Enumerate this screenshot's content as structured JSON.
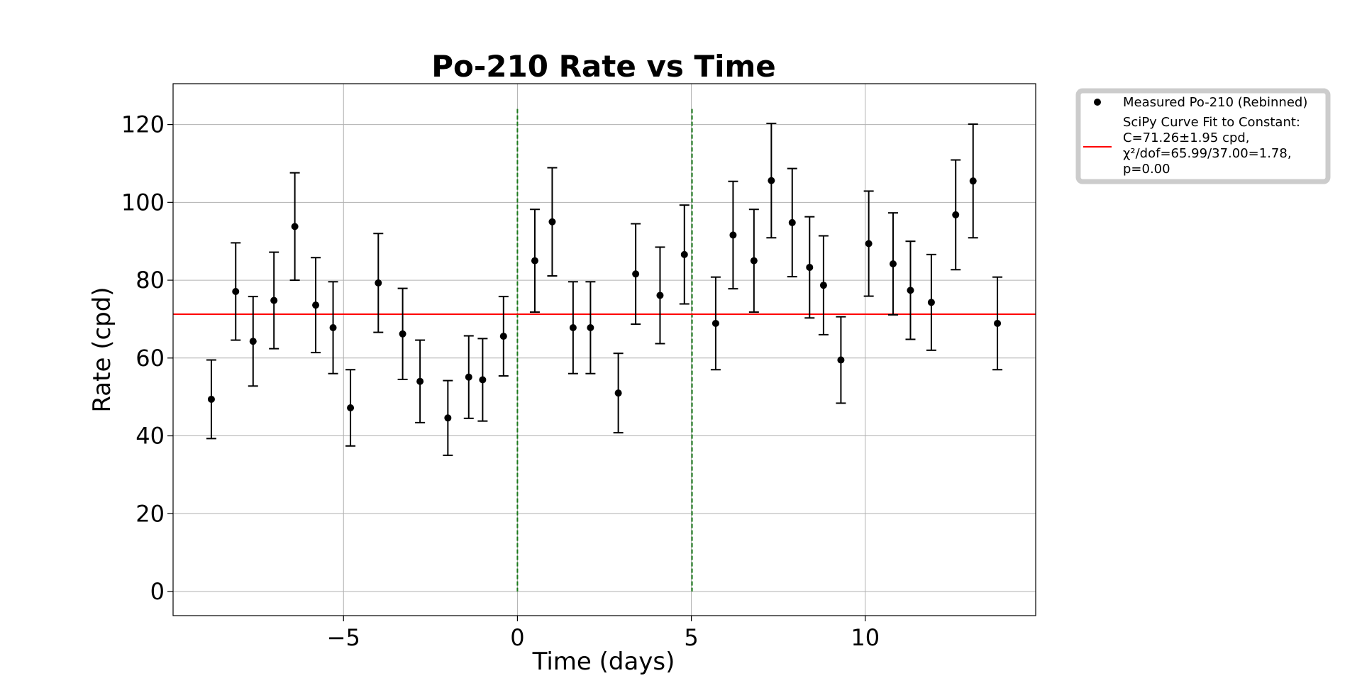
{
  "chart_data": {
    "type": "scatter",
    "title": "Po-210 Rate vs Time",
    "xlabel": "Time (days)",
    "ylabel": "Rate (cpd)",
    "xlim": [
      -9.9,
      14.9
    ],
    "ylim": [
      -6.2,
      130.5
    ],
    "xticks": [
      -5,
      0,
      5,
      10
    ],
    "xtick_labels": [
      "−5",
      "0",
      "5",
      "10"
    ],
    "yticks": [
      0,
      20,
      40,
      60,
      80,
      100,
      120
    ],
    "ytick_labels": [
      "0",
      "20",
      "40",
      "60",
      "80",
      "100",
      "120"
    ],
    "grid": true,
    "legend_position": "outside-top-right",
    "series": [
      {
        "name": "Measured Po-210 (Rebinned)",
        "kind": "errorbar",
        "color": "#000000",
        "points": [
          {
            "x": -8.8,
            "y": 49.4,
            "err": 10.1
          },
          {
            "x": -8.1,
            "y": 77.1,
            "err": 12.5
          },
          {
            "x": -7.6,
            "y": 64.3,
            "err": 11.5
          },
          {
            "x": -7.0,
            "y": 74.8,
            "err": 12.4
          },
          {
            "x": -6.4,
            "y": 93.8,
            "err": 13.8
          },
          {
            "x": -5.8,
            "y": 73.6,
            "err": 12.2
          },
          {
            "x": -5.3,
            "y": 67.8,
            "err": 11.8
          },
          {
            "x": -4.8,
            "y": 47.2,
            "err": 9.8
          },
          {
            "x": -4.0,
            "y": 79.3,
            "err": 12.7
          },
          {
            "x": -3.3,
            "y": 66.2,
            "err": 11.7
          },
          {
            "x": -2.8,
            "y": 54.0,
            "err": 10.6
          },
          {
            "x": -2.0,
            "y": 44.6,
            "err": 9.6
          },
          {
            "x": -1.4,
            "y": 55.1,
            "err": 10.6
          },
          {
            "x": -1.0,
            "y": 54.4,
            "err": 10.6
          },
          {
            "x": -0.4,
            "y": 65.6,
            "err": 10.2
          },
          {
            "x": 0.5,
            "y": 85.0,
            "err": 13.2
          },
          {
            "x": 1.0,
            "y": 95.0,
            "err": 13.9
          },
          {
            "x": 1.6,
            "y": 67.8,
            "err": 11.8
          },
          {
            "x": 2.1,
            "y": 67.8,
            "err": 11.8
          },
          {
            "x": 2.9,
            "y": 51.0,
            "err": 10.2
          },
          {
            "x": 3.4,
            "y": 81.6,
            "err": 12.9
          },
          {
            "x": 4.1,
            "y": 76.1,
            "err": 12.4
          },
          {
            "x": 4.8,
            "y": 86.6,
            "err": 12.7
          },
          {
            "x": 5.7,
            "y": 68.9,
            "err": 11.9
          },
          {
            "x": 6.2,
            "y": 91.6,
            "err": 13.8
          },
          {
            "x": 6.8,
            "y": 85.0,
            "err": 13.2
          },
          {
            "x": 7.3,
            "y": 105.6,
            "err": 14.7
          },
          {
            "x": 7.9,
            "y": 94.8,
            "err": 13.9
          },
          {
            "x": 8.4,
            "y": 83.3,
            "err": 13.0
          },
          {
            "x": 8.8,
            "y": 78.7,
            "err": 12.7
          },
          {
            "x": 9.3,
            "y": 59.5,
            "err": 11.1
          },
          {
            "x": 10.1,
            "y": 89.4,
            "err": 13.5
          },
          {
            "x": 10.8,
            "y": 84.2,
            "err": 13.1
          },
          {
            "x": 11.3,
            "y": 77.4,
            "err": 12.6
          },
          {
            "x": 11.9,
            "y": 74.3,
            "err": 12.3
          },
          {
            "x": 12.6,
            "y": 96.8,
            "err": 14.1
          },
          {
            "x": 13.1,
            "y": 105.5,
            "err": 14.6
          },
          {
            "x": 13.8,
            "y": 68.9,
            "err": 11.9
          }
        ]
      },
      {
        "name": "SciPy Curve Fit to Constant:\nC=71.26±1.95 cpd,\nχ²/dof=65.99/37.00=1.78,\np=0.00",
        "kind": "hline",
        "color": "#ff0000",
        "value": 71.26
      }
    ],
    "vlines": [
      {
        "x": 0,
        "ymin": 0,
        "ymax": 124,
        "color": "#1a7a1a",
        "style": "dashed"
      },
      {
        "x": 5.02,
        "ymin": 0,
        "ymax": 124,
        "color": "#1a7a1a",
        "style": "dashed"
      }
    ]
  }
}
